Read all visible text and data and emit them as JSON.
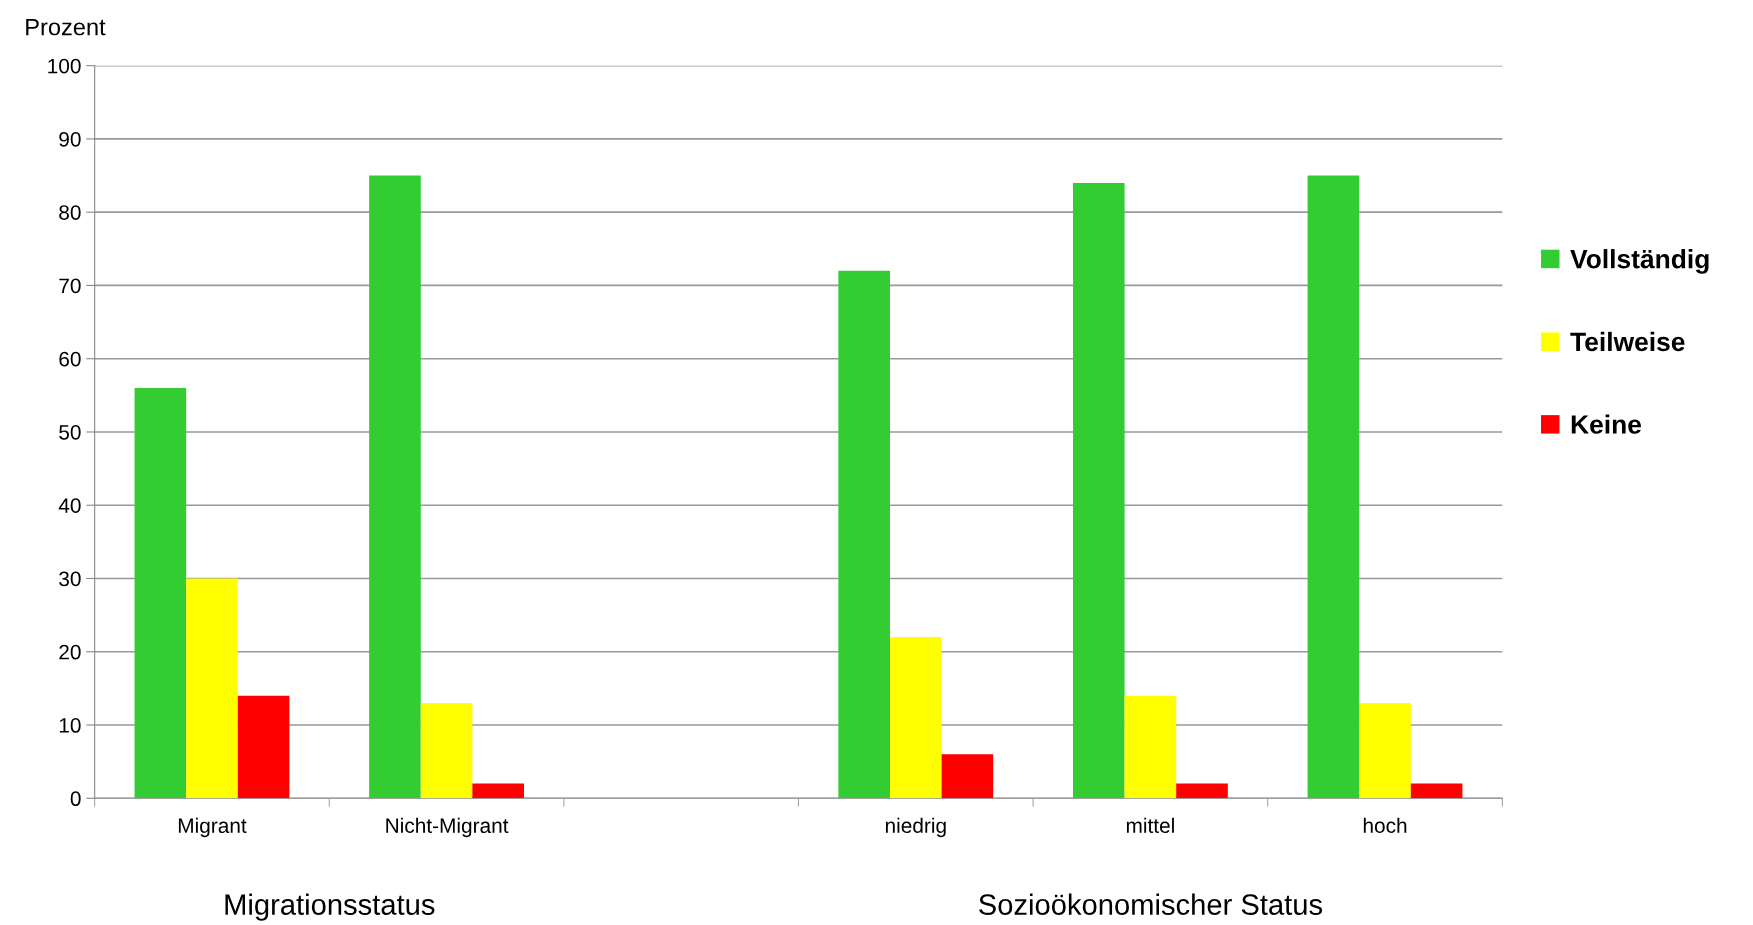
{
  "chart_data": {
    "type": "bar",
    "ylabel": "Prozent",
    "categories": [
      "Migrant",
      "Nicht-Migrant",
      null,
      "niedrig",
      "mittel",
      "hoch"
    ],
    "series": [
      {
        "name": "Vollständig",
        "color": "#33cc33",
        "values": [
          56,
          85,
          null,
          72,
          84,
          85
        ]
      },
      {
        "name": "Teilweise",
        "color": "#ffff00",
        "values": [
          30,
          13,
          null,
          22,
          14,
          13
        ]
      },
      {
        "name": "Keine",
        "color": "#ff0000",
        "values": [
          14,
          2,
          null,
          6,
          2,
          2
        ]
      }
    ],
    "ylim": [
      0,
      100
    ],
    "yticks": [
      0,
      10,
      20,
      30,
      40,
      50,
      60,
      70,
      80,
      90,
      100
    ],
    "grid": "y",
    "legend": "right",
    "annotations": [
      "Migrationsstatus",
      "Sozioökonomischer Status"
    ]
  }
}
